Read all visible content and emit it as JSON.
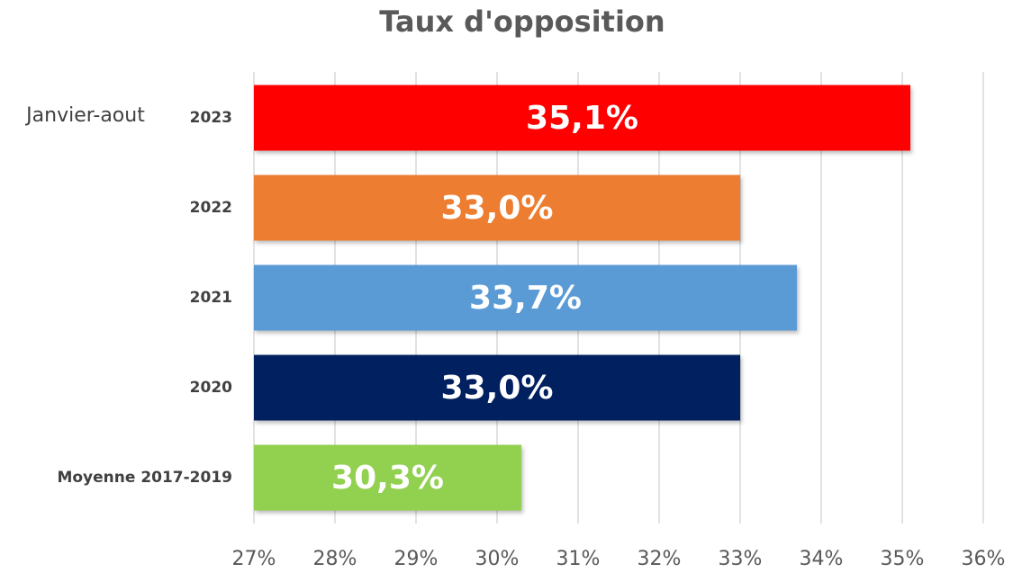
{
  "chart_data": {
    "type": "bar",
    "title": "Taux d'opposition",
    "annotation": "Janvier-aout",
    "categories": [
      "2023",
      "2022",
      "2021",
      "2020",
      "Moyenne 2017-2019"
    ],
    "values": [
      35.1,
      33.0,
      33.7,
      33.0,
      30.3
    ],
    "value_labels": [
      "35,1%",
      "33,0%",
      "33,7%",
      "33,0%",
      "30,3%"
    ],
    "colors": [
      "#ff0000",
      "#ed7d31",
      "#5b9bd5",
      "#002060",
      "#92d050"
    ],
    "xlim": [
      27,
      36
    ],
    "xticks": [
      {
        "value": 27,
        "label": "27%"
      },
      {
        "value": 28,
        "label": "28%"
      },
      {
        "value": 29,
        "label": "29%"
      },
      {
        "value": 30,
        "label": "30%"
      },
      {
        "value": 31,
        "label": "31%"
      },
      {
        "value": 32,
        "label": "32%"
      },
      {
        "value": 33,
        "label": "33%"
      },
      {
        "value": 34,
        "label": "34%"
      },
      {
        "value": 35,
        "label": "35%"
      },
      {
        "value": 36,
        "label": "36%"
      }
    ],
    "grid": true
  }
}
